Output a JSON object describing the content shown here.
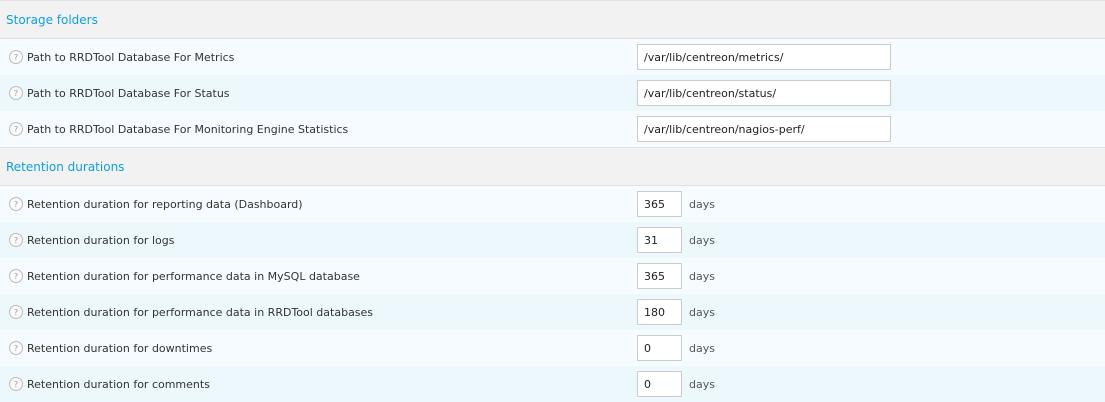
{
  "sections": [
    {
      "title": "Storage folders",
      "rows": [
        {
          "label": "Path to RRDTool Database For Metrics",
          "value": "/var/lib/centreon/metrics/"
        },
        {
          "label": "Path to RRDTool Database For Status",
          "value": "/var/lib/centreon/status/"
        },
        {
          "label": "Path to RRDTool Database For Monitoring Engine Statistics",
          "value": "/var/lib/centreon/nagios-perf/"
        }
      ]
    },
    {
      "title": "Retention durations",
      "rows": [
        {
          "label": "Retention duration for reporting data (Dashboard)",
          "value": "365",
          "unit": "days"
        },
        {
          "label": "Retention duration for logs",
          "value": "31",
          "unit": "days"
        },
        {
          "label": "Retention duration for performance data in MySQL database",
          "value": "365",
          "unit": "days"
        },
        {
          "label": "Retention duration for performance data in RRDTool databases",
          "value": "180",
          "unit": "days"
        },
        {
          "label": "Retention duration for downtimes",
          "value": "0",
          "unit": "days"
        },
        {
          "label": "Retention duration for comments",
          "value": "0",
          "unit": "days"
        }
      ]
    }
  ],
  "help_glyph": "?"
}
